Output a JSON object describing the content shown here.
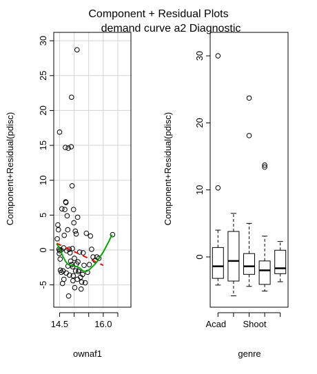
{
  "figure": {
    "title": "Component + Residual Plots",
    "subtitle": "demand curve a2 Diagnostic"
  },
  "chart_data": [
    {
      "type": "scatter",
      "xlabel": "ownaf1",
      "ylabel": "Component+Residual(pdisc)",
      "xlim": [
        14.3,
        16.95
      ],
      "ylim": [
        -8.2,
        31.2
      ],
      "x_ticks": [
        14.5,
        16.0
      ],
      "x_tick_labels": [
        "14.5",
        "16.0"
      ],
      "x_minor_ticks": [
        14.5,
        15.0,
        15.5,
        16.0,
        16.5
      ],
      "y_ticks": [
        -5,
        0,
        5,
        10,
        15,
        20,
        25,
        30
      ],
      "y_tick_labels": [
        "-5",
        "0",
        "5",
        "10",
        "15",
        "20",
        "25",
        "30"
      ],
      "grid": true,
      "points": [
        [
          14.42,
          1.6
        ],
        [
          14.44,
          3.6
        ],
        [
          14.46,
          2.9
        ],
        [
          14.48,
          0.1
        ],
        [
          14.49,
          -0.5
        ],
        [
          14.5,
          16.9
        ],
        [
          14.52,
          -1.3
        ],
        [
          14.53,
          -2.9
        ],
        [
          14.55,
          0.0
        ],
        [
          14.56,
          -3.2
        ],
        [
          14.58,
          5.9
        ],
        [
          14.6,
          -4.8
        ],
        [
          14.62,
          -3.0
        ],
        [
          14.64,
          0.3
        ],
        [
          14.65,
          -4.2
        ],
        [
          14.66,
          2.1
        ],
        [
          14.68,
          5.8
        ],
        [
          14.7,
          14.7
        ],
        [
          14.71,
          6.9
        ],
        [
          14.72,
          6.8
        ],
        [
          14.73,
          -3.3
        ],
        [
          14.74,
          -0.1
        ],
        [
          14.76,
          4.9
        ],
        [
          14.78,
          2.9
        ],
        [
          14.79,
          -2.3
        ],
        [
          14.8,
          14.6
        ],
        [
          14.81,
          -6.6
        ],
        [
          14.83,
          0.1
        ],
        [
          14.84,
          -3.6
        ],
        [
          14.86,
          -0.4
        ],
        [
          14.88,
          -1.6
        ],
        [
          14.9,
          14.8
        ],
        [
          14.91,
          21.9
        ],
        [
          14.92,
          -2.1
        ],
        [
          14.93,
          9.2
        ],
        [
          14.94,
          0.2
        ],
        [
          14.96,
          -4.4
        ],
        [
          14.97,
          -3.7
        ],
        [
          14.98,
          5.8
        ],
        [
          14.99,
          3.9
        ],
        [
          15.01,
          -1.2
        ],
        [
          15.02,
          -5.4
        ],
        [
          15.04,
          2.7
        ],
        [
          15.05,
          -3.0
        ],
        [
          15.07,
          2.3
        ],
        [
          15.08,
          -2.0
        ],
        [
          15.1,
          28.7
        ],
        [
          15.11,
          -4.2
        ],
        [
          15.12,
          4.7
        ],
        [
          15.13,
          -1.7
        ],
        [
          15.15,
          -3.1
        ],
        [
          15.17,
          -2.9
        ],
        [
          15.19,
          -0.3
        ],
        [
          15.22,
          -3.9
        ],
        [
          15.24,
          -5.6
        ],
        [
          15.26,
          -4.6
        ],
        [
          15.29,
          -3.5
        ],
        [
          15.31,
          -0.4
        ],
        [
          15.34,
          -2.2
        ],
        [
          15.38,
          -4.7
        ],
        [
          15.42,
          2.4
        ],
        [
          15.46,
          -3.2
        ],
        [
          15.52,
          -2.1
        ],
        [
          15.56,
          2.0
        ],
        [
          15.6,
          0.1
        ],
        [
          15.65,
          -1.0
        ],
        [
          15.72,
          -1.5
        ],
        [
          15.78,
          -1.0
        ],
        [
          15.85,
          -1.2
        ],
        [
          16.32,
          2.2
        ],
        [
          14.5,
          -0.1
        ],
        [
          14.95,
          -2.4
        ]
      ],
      "linear_fit_dashed": [
        [
          14.4,
          0.95
        ],
        [
          16.0,
          -2.2
        ]
      ],
      "smooth_line": [
        [
          14.4,
          0.9
        ],
        [
          14.5,
          0.2
        ],
        [
          14.6,
          -0.8
        ],
        [
          14.7,
          -1.6
        ],
        [
          14.8,
          -2.1
        ],
        [
          14.9,
          -2.2
        ],
        [
          15.0,
          -2.3
        ],
        [
          15.1,
          -2.4
        ],
        [
          15.2,
          -2.6
        ],
        [
          15.3,
          -3.0
        ],
        [
          15.4,
          -3.1
        ],
        [
          15.5,
          -2.9
        ],
        [
          15.6,
          -2.5
        ],
        [
          15.7,
          -2.1
        ],
        [
          15.8,
          -1.6
        ],
        [
          15.9,
          -0.9
        ],
        [
          16.0,
          -0.3
        ],
        [
          16.1,
          0.5
        ],
        [
          16.2,
          1.3
        ],
        [
          16.3,
          2.2
        ]
      ],
      "colors": {
        "points": "#000000",
        "dashed_fit": "#ff0000",
        "smooth": "#00aa00",
        "grid": "#d3d3d3"
      }
    },
    {
      "type": "box",
      "xlabel": "genre",
      "ylabel": "Component+Residual(pdisc)",
      "ylim": [
        -7.5,
        33.5
      ],
      "y_ticks": [
        0,
        10,
        20,
        30
      ],
      "y_tick_labels": [
        "0",
        "10",
        "20",
        "30"
      ],
      "categories_shown": [
        "Acad",
        "Shoot"
      ],
      "boxes": [
        {
          "lower_whisker": -4.2,
          "q1": -3.2,
          "median": -1.4,
          "q3": 1.4,
          "upper_whisker": 4.0,
          "outliers": [
            10.3,
            30.0
          ]
        },
        {
          "lower_whisker": -5.8,
          "q1": -3.6,
          "median": -0.6,
          "q3": 3.8,
          "upper_whisker": 6.5,
          "outliers": []
        },
        {
          "lower_whisker": -4.4,
          "q1": -2.6,
          "median": -1.4,
          "q3": 0.5,
          "upper_whisker": 5.0,
          "outliers": [
            18.1,
            23.7
          ]
        },
        {
          "lower_whisker": -5.1,
          "q1": -4.1,
          "median": -2.0,
          "q3": -0.6,
          "upper_whisker": 3.1,
          "outliers": [
            13.4,
            13.7
          ]
        },
        {
          "lower_whisker": -3.7,
          "q1": -2.5,
          "median": -1.7,
          "q3": 1.0,
          "upper_whisker": 2.3,
          "outliers": []
        }
      ]
    }
  ]
}
